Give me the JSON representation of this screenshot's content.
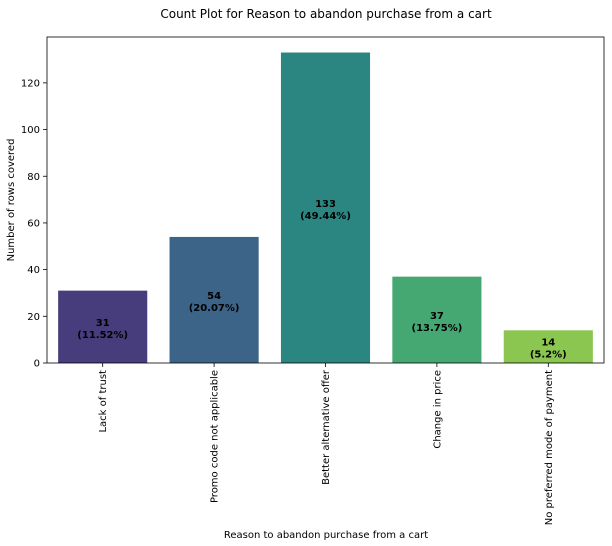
{
  "chart_data": {
    "type": "bar",
    "title": "Count Plot for Reason to abandon purchase from a cart",
    "xlabel": "Reason to abandon purchase from a cart",
    "ylabel": "Number of rows covered",
    "categories": [
      "Lack of trust",
      "Promo code not applicable",
      "Better alternative offer",
      "Change in price",
      "No preferred mode of payment"
    ],
    "values": [
      31,
      54,
      133,
      37,
      14
    ],
    "value_labels": [
      "31",
      "54",
      "133",
      "37",
      "14"
    ],
    "percent_labels": [
      "(11.52%)",
      "(20.07%)",
      "(49.44%)",
      "(13.75%)",
      "(5.2%)"
    ],
    "colors": [
      "#483d7c",
      "#3c6488",
      "#2b8580",
      "#45a872",
      "#8ac650"
    ],
    "ylim": [
      0,
      139.65
    ],
    "yticks": [
      0,
      20,
      40,
      60,
      80,
      100,
      120
    ],
    "ytick_labels": [
      "0",
      "20",
      "40",
      "60",
      "80",
      "100",
      "120"
    ],
    "grid": false,
    "legend": "none"
  }
}
